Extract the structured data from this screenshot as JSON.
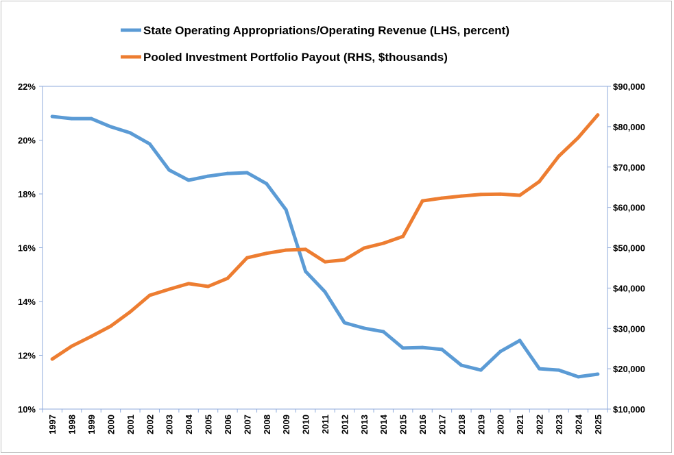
{
  "chart_data": {
    "type": "line",
    "x": [
      1997,
      1998,
      1999,
      2000,
      2001,
      2002,
      2003,
      2004,
      2005,
      2006,
      2007,
      2008,
      2009,
      2010,
      2011,
      2012,
      2013,
      2014,
      2015,
      2016,
      2017,
      2018,
      2019,
      2020,
      2021,
      2022,
      2023,
      2024,
      2025
    ],
    "series": [
      {
        "name": "State Operating Appropriations/Operating Revenue (LHS, percent)",
        "axis": "left",
        "color": "#5b9bd5",
        "values": [
          20.88,
          20.8,
          20.8,
          20.5,
          20.27,
          19.86,
          18.89,
          18.51,
          18.66,
          18.76,
          18.79,
          18.38,
          17.41,
          15.12,
          14.36,
          13.21,
          13.01,
          12.88,
          12.27,
          12.29,
          12.22,
          11.63,
          11.45,
          12.14,
          12.55,
          11.5,
          11.45,
          11.2,
          11.3
        ]
      },
      {
        "name": "Pooled Investment Portfolio Payout (RHS, $thousands)",
        "axis": "right",
        "color": "#ed7d31",
        "values": [
          22400,
          25600,
          28000,
          30550,
          34100,
          38200,
          39700,
          41100,
          40400,
          42400,
          47500,
          48600,
          49400,
          49600,
          46500,
          47000,
          49900,
          51100,
          52800,
          61600,
          62300,
          62800,
          63200,
          63300,
          63000,
          66400,
          72700,
          77300,
          82900
        ]
      }
    ],
    "left_axis": {
      "ylim": [
        10,
        22
      ],
      "ticks": [
        "10%",
        "12%",
        "14%",
        "16%",
        "18%",
        "20%",
        "22%"
      ]
    },
    "right_axis": {
      "ylim": [
        10000,
        90000
      ],
      "ticks": [
        "$10,000",
        "$20,000",
        "$30,000",
        "$40,000",
        "$50,000",
        "$60,000",
        "$70,000",
        "$80,000",
        "$90,000"
      ]
    },
    "x_tick_labels": [
      "1997",
      "1998",
      "1999",
      "2000",
      "2001",
      "2002",
      "2003",
      "2004",
      "2005",
      "2006",
      "2007",
      "2008",
      "2009",
      "2010",
      "2011",
      "2012",
      "2013",
      "2014",
      "2015",
      "2016",
      "2017",
      "2018",
      "2019",
      "2020",
      "2021",
      "2022",
      "2023",
      "2024",
      "2025"
    ],
    "legend_position": "top",
    "grid": false,
    "axis_color": "#8eaadb"
  }
}
